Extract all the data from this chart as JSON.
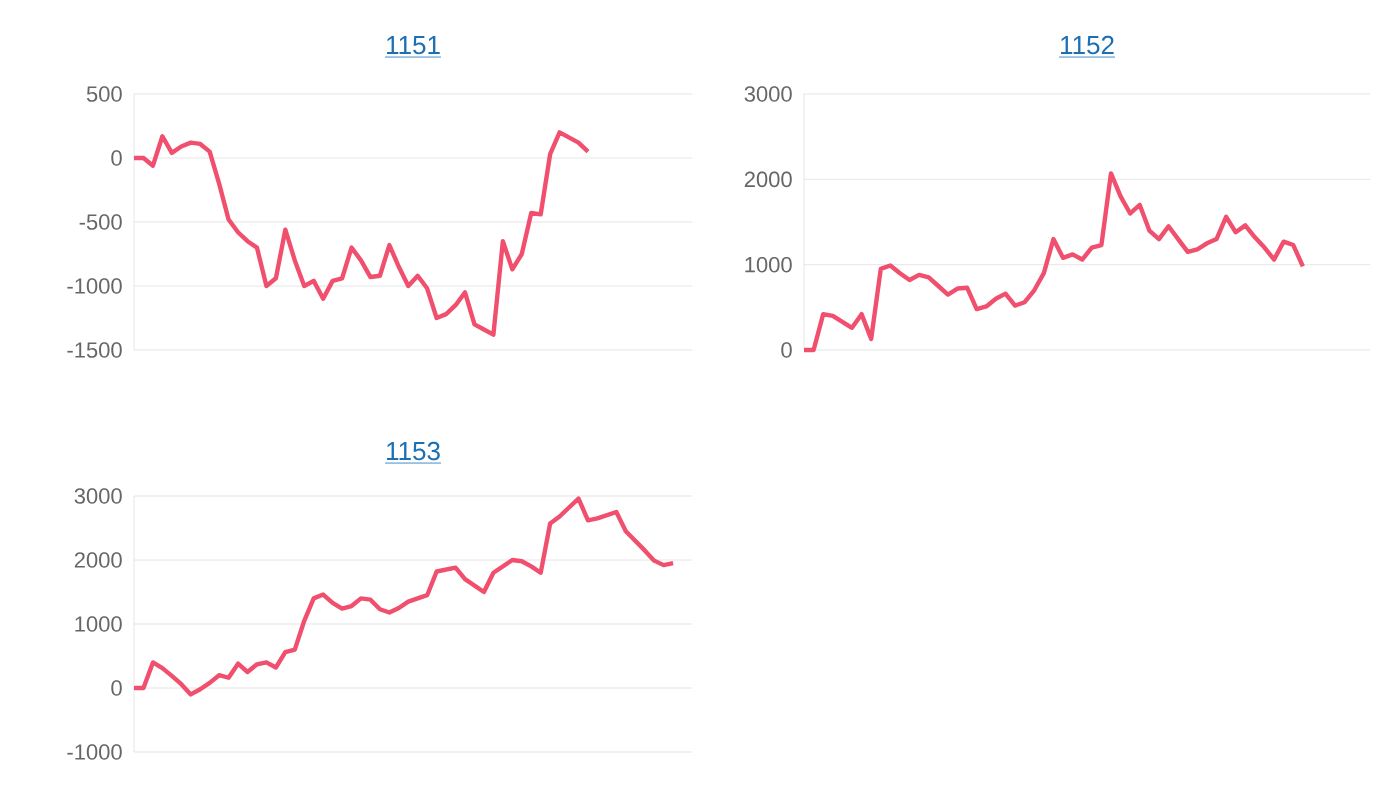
{
  "chart_data": [
    {
      "type": "line",
      "title": "1151",
      "tick_labels": "y",
      "grid": "y",
      "color": "#f0506e",
      "categories": [
        null,
        null,
        null,
        null,
        null,
        null,
        null,
        null,
        null,
        null,
        null,
        null,
        null,
        null,
        null,
        null,
        null,
        null,
        null,
        null,
        null,
        null,
        null,
        null,
        null,
        null,
        null,
        null,
        null,
        null,
        null,
        null,
        null,
        null,
        null,
        null,
        null,
        null,
        null,
        null,
        null,
        null,
        null,
        null,
        null,
        null,
        null,
        null,
        null,
        null,
        null,
        null,
        null,
        null,
        null,
        null,
        null,
        null,
        null,
        null
      ],
      "values": [
        0,
        0,
        -60,
        170,
        40,
        90,
        120,
        110,
        50,
        -200,
        -480,
        -580,
        -650,
        -700,
        -1000,
        -940,
        -560,
        -800,
        -1000,
        -960,
        -1100,
        -960,
        -940,
        -700,
        -800,
        -930,
        -920,
        -680,
        -850,
        -1000,
        -920,
        -1020,
        -1250,
        -1220,
        -1150,
        -1050,
        -1300,
        -1340,
        -1380,
        -650,
        -870,
        -750,
        -430,
        -440,
        30,
        200,
        160,
        120,
        50,
        null,
        null,
        null,
        null,
        null,
        null,
        null,
        null,
        null,
        null,
        null
      ],
      "ylim": [
        -1500,
        500
      ],
      "yticks": [
        -1500,
        -1000,
        -500,
        0,
        500
      ]
    },
    {
      "type": "line",
      "title": "1152",
      "tick_labels": "y",
      "grid": "y",
      "color": "#f0506e",
      "categories": [
        null,
        null,
        null,
        null,
        null,
        null,
        null,
        null,
        null,
        null,
        null,
        null,
        null,
        null,
        null,
        null,
        null,
        null,
        null,
        null,
        null,
        null,
        null,
        null,
        null,
        null,
        null,
        null,
        null,
        null,
        null,
        null,
        null,
        null,
        null,
        null,
        null,
        null,
        null,
        null,
        null,
        null,
        null,
        null,
        null,
        null,
        null,
        null,
        null,
        null,
        null,
        null,
        null,
        null,
        null,
        null,
        null,
        null,
        null,
        null
      ],
      "values": [
        0,
        0,
        420,
        400,
        330,
        260,
        420,
        130,
        950,
        990,
        900,
        820,
        880,
        850,
        750,
        650,
        720,
        730,
        480,
        510,
        600,
        660,
        520,
        560,
        700,
        900,
        1300,
        1080,
        1120,
        1060,
        1200,
        1230,
        2070,
        1800,
        1600,
        1700,
        1400,
        1300,
        1450,
        1300,
        1150,
        1180,
        1250,
        1300,
        1560,
        1380,
        1460,
        1320,
        1200,
        1060,
        1270,
        1230,
        980,
        null,
        null,
        null,
        null,
        null,
        null,
        null
      ],
      "ylim": [
        0,
        3000
      ],
      "yticks": [
        0,
        1000,
        2000,
        3000
      ]
    },
    {
      "type": "line",
      "title": "1153",
      "tick_labels": "y",
      "grid": "y",
      "color": "#f0506e",
      "categories": [
        null,
        null,
        null,
        null,
        null,
        null,
        null,
        null,
        null,
        null,
        null,
        null,
        null,
        null,
        null,
        null,
        null,
        null,
        null,
        null,
        null,
        null,
        null,
        null,
        null,
        null,
        null,
        null,
        null,
        null,
        null,
        null,
        null,
        null,
        null,
        null,
        null,
        null,
        null,
        null,
        null,
        null,
        null,
        null,
        null,
        null,
        null,
        null,
        null,
        null,
        null,
        null,
        null,
        null,
        null,
        null,
        null,
        null,
        null,
        null
      ],
      "values": [
        0,
        0,
        400,
        310,
        190,
        60,
        -100,
        -20,
        80,
        200,
        160,
        380,
        250,
        370,
        400,
        320,
        560,
        600,
        1050,
        1400,
        1460,
        1330,
        1240,
        1280,
        1400,
        1380,
        1230,
        1180,
        1250,
        1350,
        1400,
        1450,
        1820,
        1850,
        1880,
        1700,
        1600,
        1500,
        1800,
        1900,
        2000,
        1980,
        1900,
        1800,
        2570,
        2680,
        2820,
        2960,
        2620,
        2650,
        2700,
        2750,
        2450,
        2300,
        2150,
        1990,
        1920,
        1950,
        null,
        null
      ],
      "ylim": [
        -1000,
        3000
      ],
      "yticks": [
        -1000,
        0,
        1000,
        2000,
        3000
      ]
    }
  ]
}
